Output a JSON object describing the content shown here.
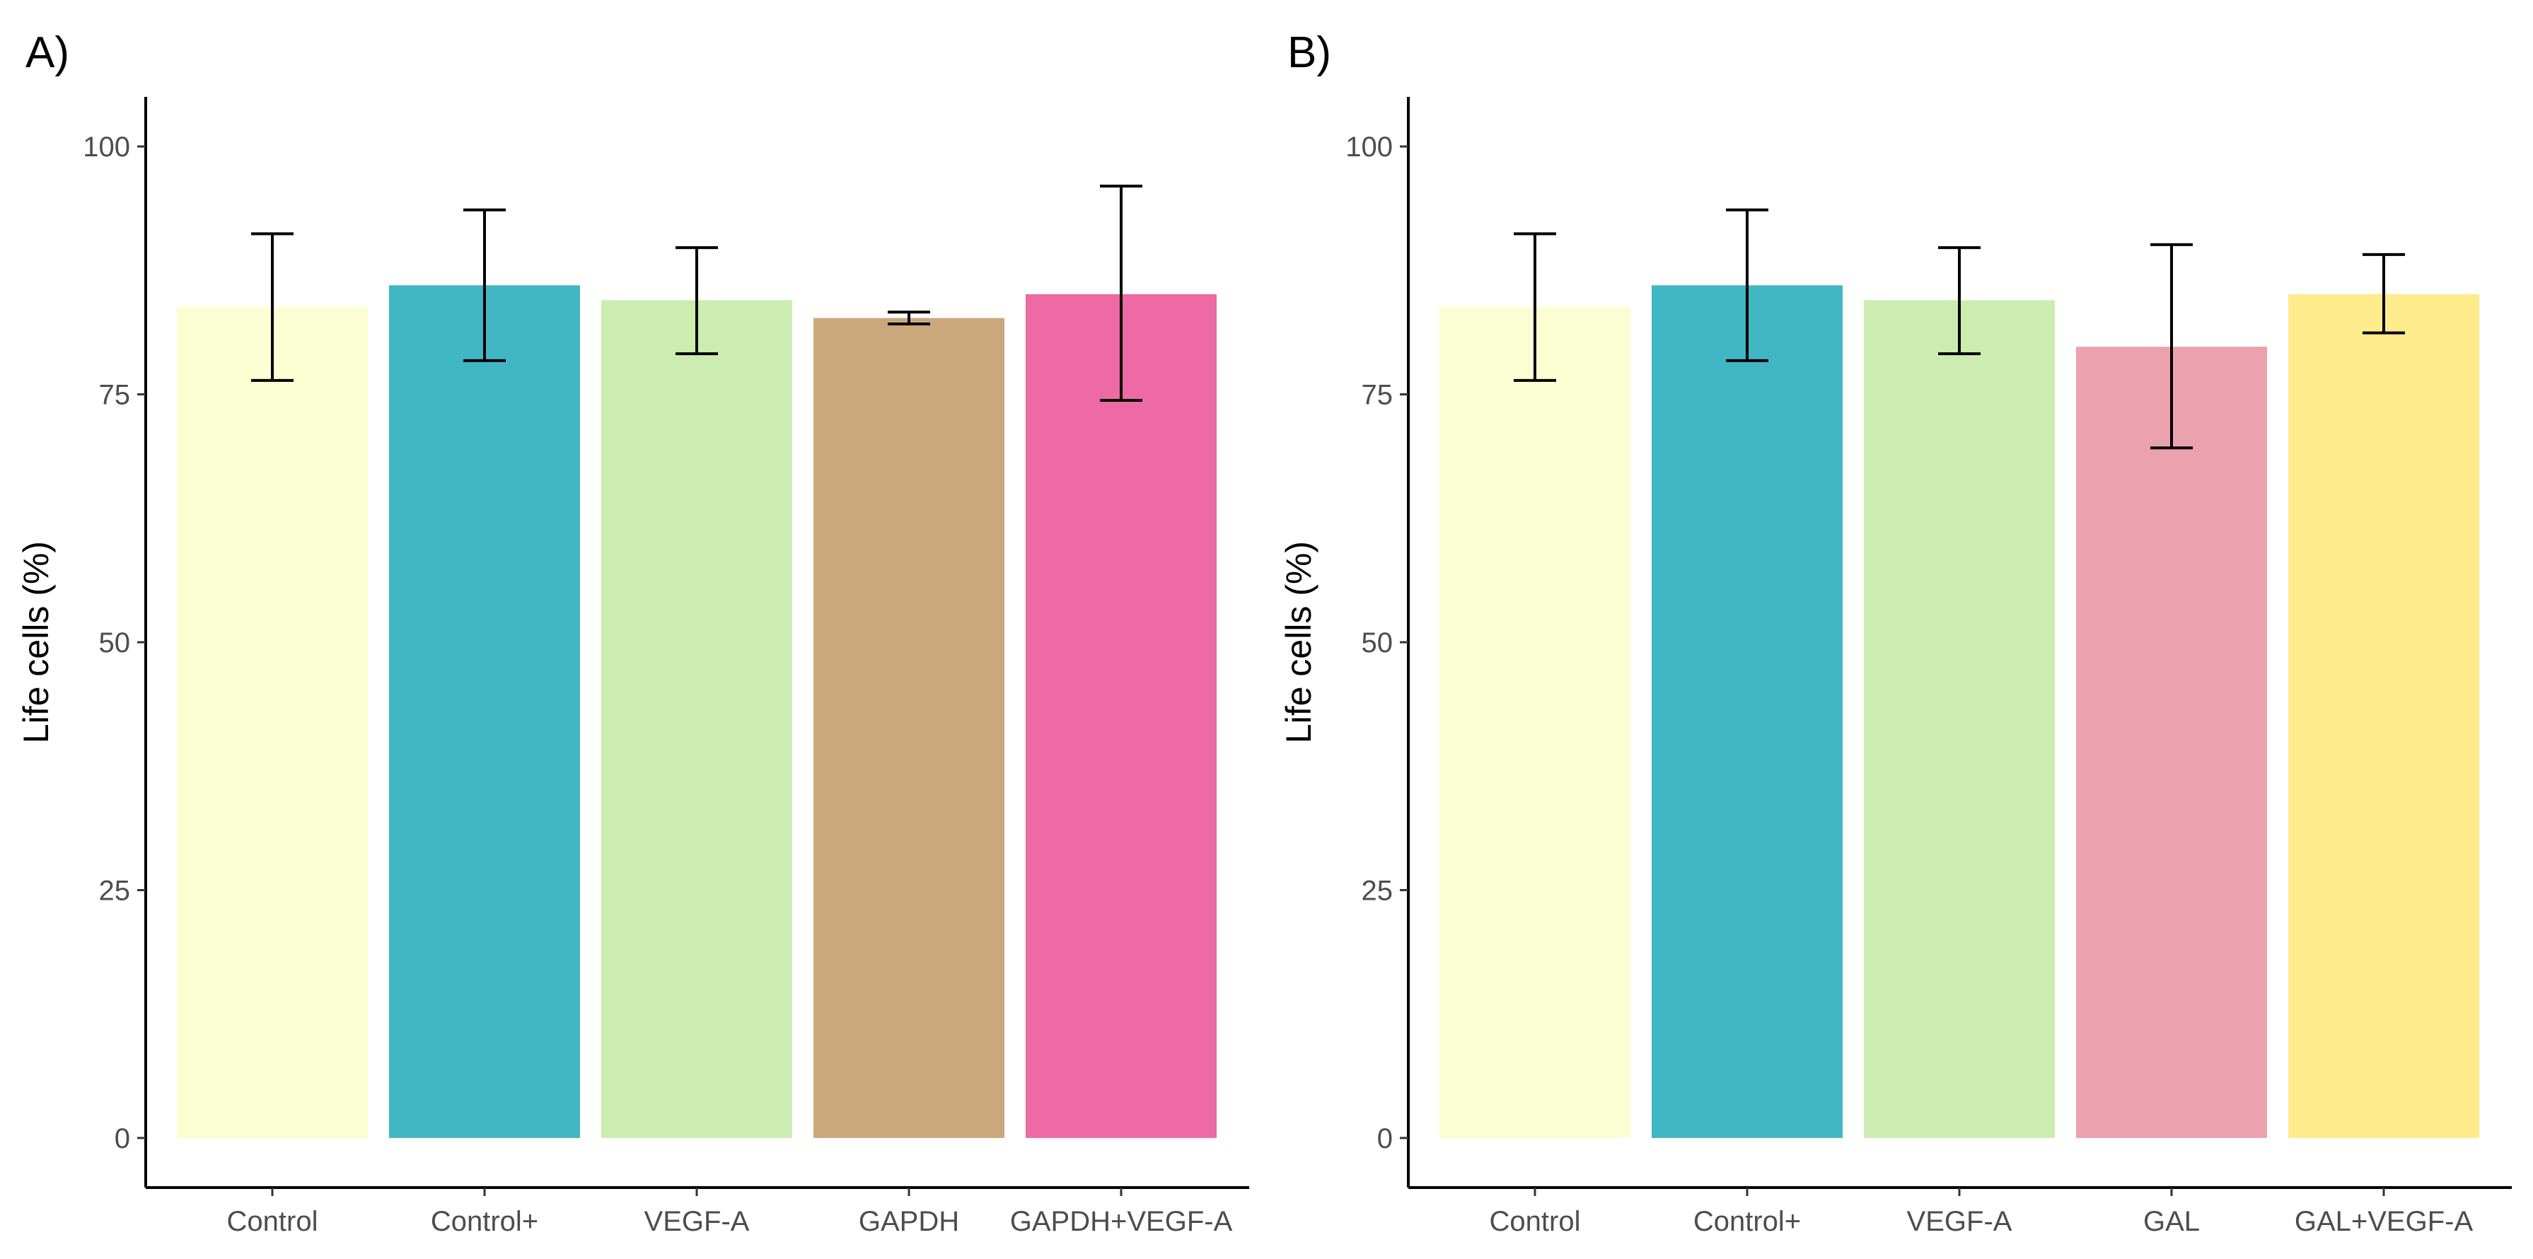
{
  "chart_data": [
    {
      "type": "bar",
      "panel_label": "A)",
      "categories": [
        "Control",
        "Control+",
        "VEGF-A",
        "GAPDH",
        "GAPDH+VEGF-A"
      ],
      "values": [
        83.8,
        86.0,
        84.5,
        82.7,
        85.1
      ],
      "error_low": [
        76.4,
        78.4,
        79.1,
        82.1,
        74.4
      ],
      "error_high": [
        91.2,
        93.6,
        89.8,
        83.3,
        96.0
      ],
      "colors": [
        "#fbfed2",
        "#41b6c4",
        "#ccedb1",
        "#cba87b",
        "#ed6aa4"
      ],
      "title": "",
      "xlabel": "",
      "ylabel": "Life cells (%)",
      "ylim": [
        -5,
        105
      ],
      "yticks": [
        0,
        25,
        50,
        75,
        100
      ],
      "ytick_labels": [
        "0",
        "25",
        "50",
        "75",
        "100"
      ],
      "grid": false,
      "legend": "none"
    },
    {
      "type": "bar",
      "panel_label": "B)",
      "categories": [
        "Control",
        "Control+",
        "VEGF-A",
        "GAL",
        "GAL+VEGF-A"
      ],
      "values": [
        83.8,
        86.0,
        84.5,
        79.8,
        85.1
      ],
      "error_low": [
        76.4,
        78.4,
        79.1,
        69.6,
        81.2
      ],
      "error_high": [
        91.2,
        93.6,
        89.8,
        90.1,
        89.1
      ],
      "colors": [
        "#fbfed2",
        "#41b6c4",
        "#ccedb1",
        "#eca1ae",
        "#feeb8c"
      ],
      "title": "",
      "xlabel": "",
      "ylabel": "Life cells (%)",
      "ylim": [
        -5,
        105
      ],
      "yticks": [
        0,
        25,
        50,
        75,
        100
      ],
      "ytick_labels": [
        "0",
        "25",
        "50",
        "75",
        "100"
      ],
      "grid": false,
      "legend": "none"
    }
  ]
}
